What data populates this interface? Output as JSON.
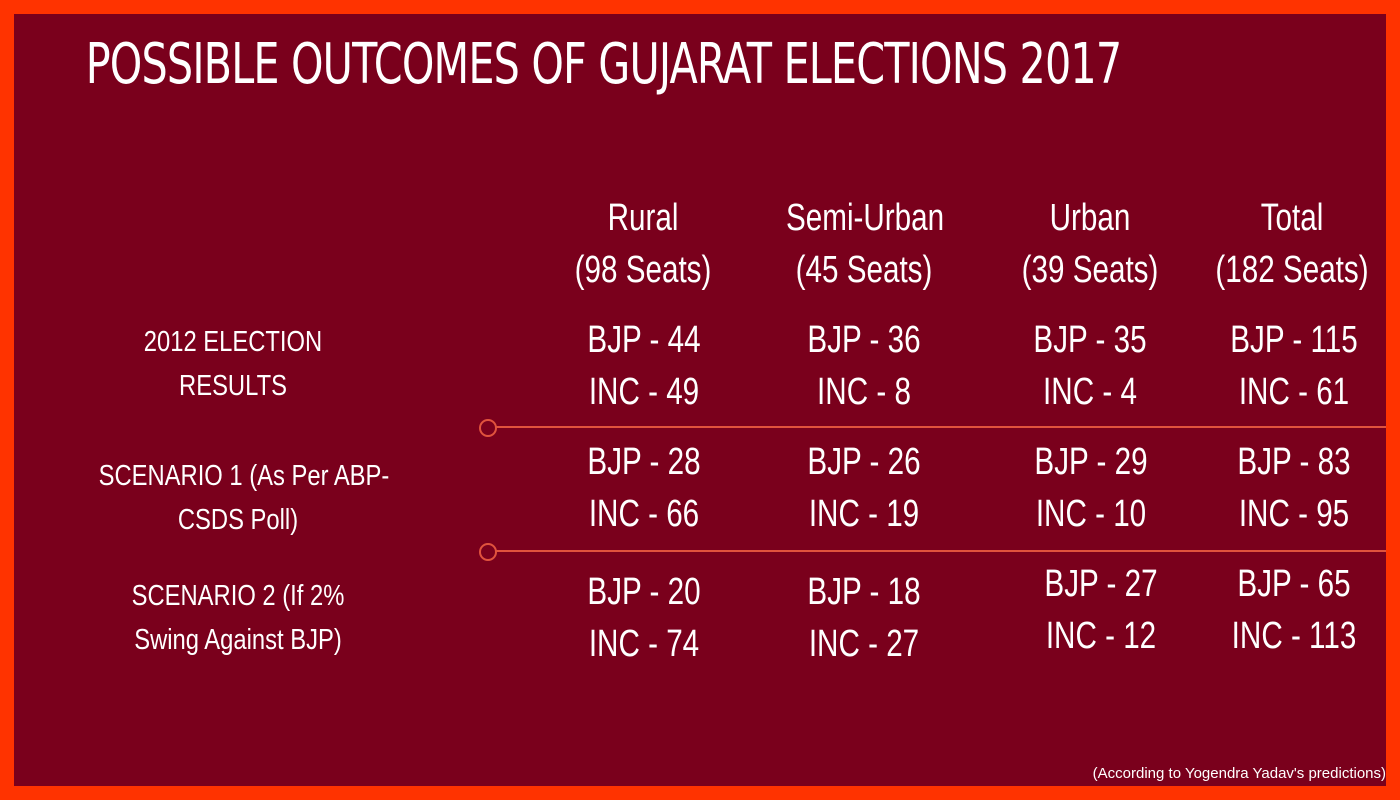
{
  "title": "POSSIBLE OUTCOMES OF GUJARAT ELECTIONS 2017",
  "columns": [
    {
      "name": "Rural",
      "seats": "(98 Seats)"
    },
    {
      "name": "Semi-Urban",
      "seats": "(45 Seats)"
    },
    {
      "name": "Urban",
      "seats": "(39 Seats)"
    },
    {
      "name": "Total",
      "seats": "(182 Seats)"
    }
  ],
  "rows": [
    {
      "label_line1": "2012 ELECTION",
      "label_line2": "RESULTS",
      "cells": [
        {
          "bjp": "BJP - 44",
          "inc": "INC - 49"
        },
        {
          "bjp": "BJP - 36",
          "inc": "INC - 8"
        },
        {
          "bjp": "BJP - 35",
          "inc": "INC - 4"
        },
        {
          "bjp": "BJP - 115",
          "inc": "INC - 61"
        }
      ]
    },
    {
      "label_line1": "SCENARIO 1 (As Per ABP-",
      "label_line2": "CSDS Poll)",
      "cells": [
        {
          "bjp": "BJP - 28",
          "inc": "INC - 66"
        },
        {
          "bjp": "BJP - 26",
          "inc": "INC - 19"
        },
        {
          "bjp": "BJP - 29",
          "inc": "INC - 10"
        },
        {
          "bjp": "BJP - 83",
          "inc": "INC - 95"
        }
      ]
    },
    {
      "label_line1": "SCENARIO 2 (If 2%",
      "label_line2": "Swing Against BJP)",
      "cells": [
        {
          "bjp": "BJP - 20",
          "inc": "INC - 74"
        },
        {
          "bjp": "BJP - 18",
          "inc": "INC - 27"
        },
        {
          "bjp": "BJP - 27",
          "inc": "INC - 12"
        },
        {
          "bjp": "BJP - 65",
          "inc": "INC - 113"
        }
      ]
    }
  ],
  "source": "(According to Yogendra Yadav's predictions)",
  "colors": {
    "background": "#7a001c",
    "border": "#ff3300",
    "divider": "#e0533d",
    "text": "#ffffff"
  }
}
